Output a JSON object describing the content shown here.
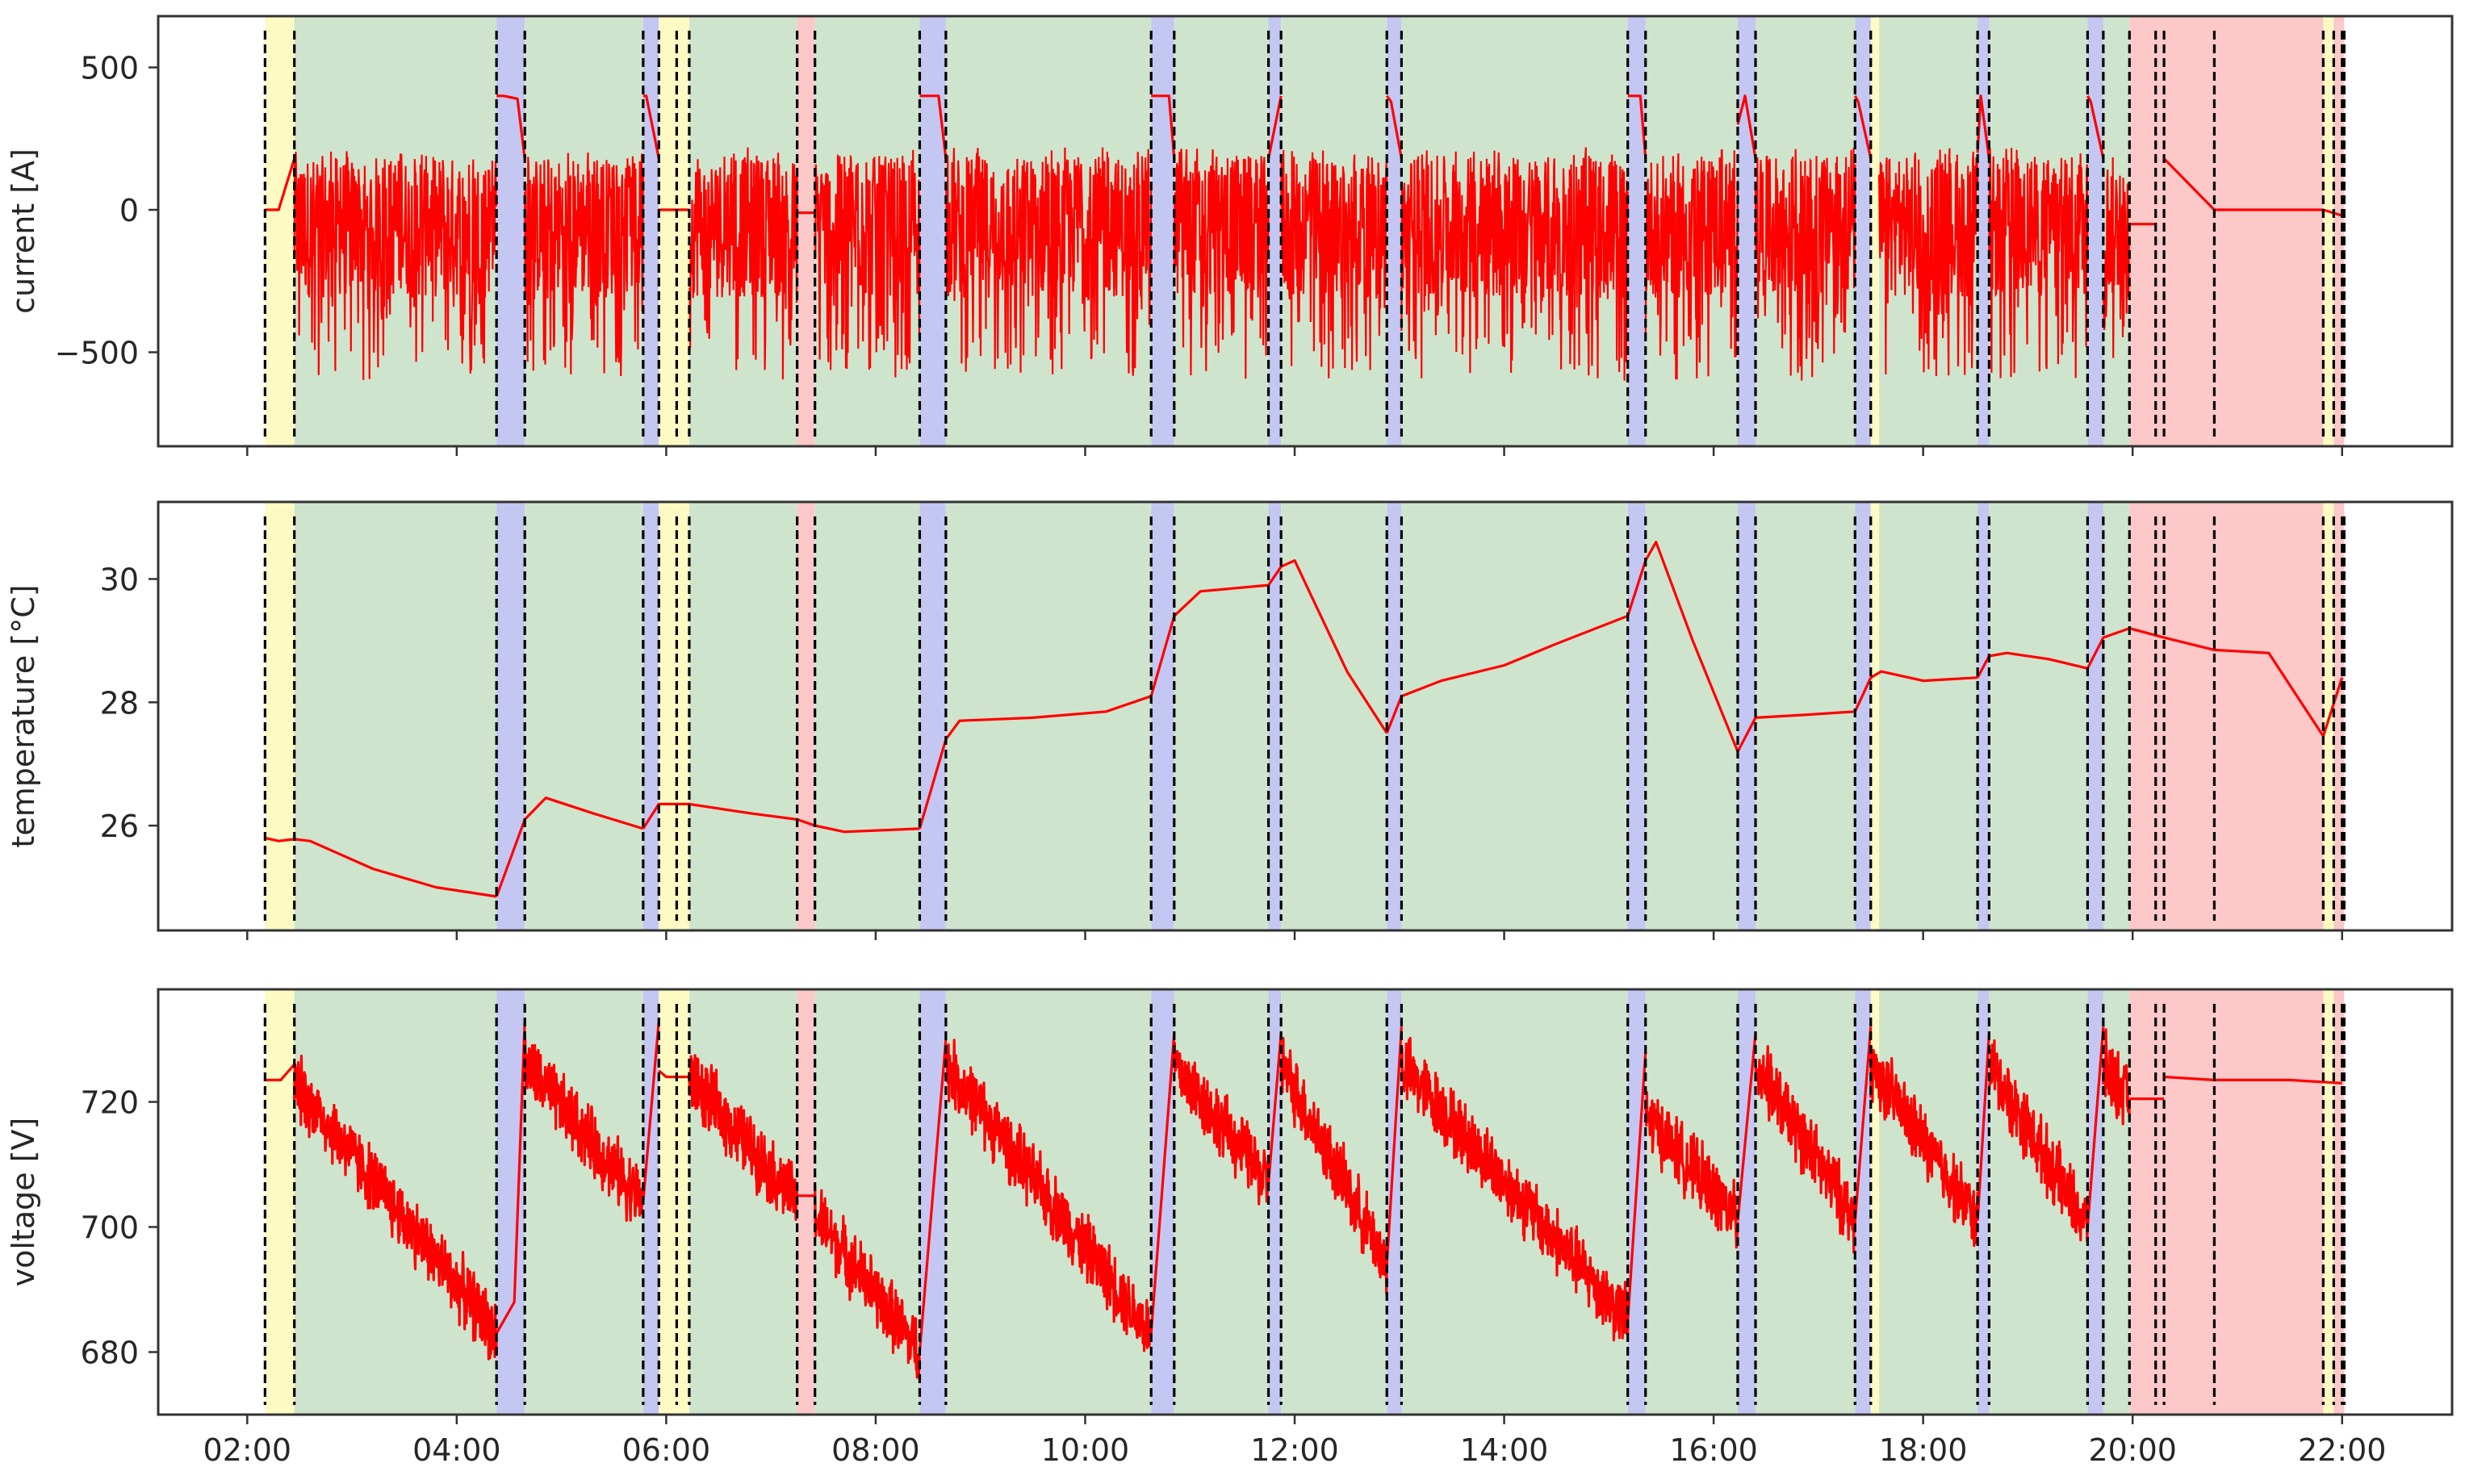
{
  "chart_data": {
    "type": "line",
    "shared_x": {
      "ticks": [
        "02:00",
        "04:00",
        "06:00",
        "08:00",
        "10:00",
        "12:00",
        "14:00",
        "16:00",
        "18:00",
        "20:00",
        "22:00"
      ],
      "tick_hours": [
        2,
        4,
        6,
        8,
        10,
        12,
        14,
        16,
        18,
        20,
        22
      ],
      "xlim_hours": [
        1.15,
        23.05
      ]
    },
    "colors": {
      "line": "#ff0000",
      "boundary": "#000000",
      "driving": "#cfe4cd",
      "charging": "#c4c7f1",
      "idle": "#fdfbc3",
      "stopped": "#fcc8c8"
    },
    "phases": [
      {
        "kind": "idle",
        "start": 2.17,
        "end": 2.45
      },
      {
        "kind": "driving",
        "start": 2.45,
        "end": 4.38
      },
      {
        "kind": "charging",
        "start": 4.38,
        "end": 4.65
      },
      {
        "kind": "driving",
        "start": 4.65,
        "end": 5.78
      },
      {
        "kind": "charging",
        "start": 5.78,
        "end": 5.93
      },
      {
        "kind": "idle",
        "start": 5.93,
        "end": 6.22
      },
      {
        "kind": "driving",
        "start": 6.22,
        "end": 7.25
      },
      {
        "kind": "stopped",
        "start": 7.25,
        "end": 7.42
      },
      {
        "kind": "driving",
        "start": 7.42,
        "end": 8.42
      },
      {
        "kind": "charging",
        "start": 8.42,
        "end": 8.67
      },
      {
        "kind": "driving",
        "start": 8.67,
        "end": 10.63
      },
      {
        "kind": "charging",
        "start": 10.63,
        "end": 10.85
      },
      {
        "kind": "driving",
        "start": 10.85,
        "end": 11.75
      },
      {
        "kind": "charging",
        "start": 11.75,
        "end": 11.87
      },
      {
        "kind": "driving",
        "start": 11.87,
        "end": 12.88
      },
      {
        "kind": "charging",
        "start": 12.88,
        "end": 13.02
      },
      {
        "kind": "driving",
        "start": 13.02,
        "end": 15.18
      },
      {
        "kind": "charging",
        "start": 15.18,
        "end": 15.35
      },
      {
        "kind": "driving",
        "start": 15.35,
        "end": 16.23
      },
      {
        "kind": "charging",
        "start": 16.23,
        "end": 16.4
      },
      {
        "kind": "driving",
        "start": 16.4,
        "end": 17.35
      },
      {
        "kind": "charging",
        "start": 17.35,
        "end": 17.5
      },
      {
        "kind": "idle",
        "start": 17.5,
        "end": 17.58
      },
      {
        "kind": "driving",
        "start": 17.58,
        "end": 18.52
      },
      {
        "kind": "charging",
        "start": 18.52,
        "end": 18.63
      },
      {
        "kind": "driving",
        "start": 18.63,
        "end": 19.57
      },
      {
        "kind": "charging",
        "start": 19.57,
        "end": 19.72
      },
      {
        "kind": "driving",
        "start": 19.72,
        "end": 19.97
      },
      {
        "kind": "stopped",
        "start": 19.97,
        "end": 20.78
      },
      {
        "kind": "stopped",
        "start": 20.78,
        "end": 21.82
      },
      {
        "kind": "idle",
        "start": 21.82,
        "end": 21.92
      },
      {
        "kind": "stopped",
        "start": 21.92,
        "end": 22.02
      }
    ],
    "boundaries": [
      2.17,
      2.45,
      4.38,
      4.65,
      5.78,
      5.93,
      6.1,
      6.22,
      7.25,
      7.42,
      8.42,
      8.67,
      10.63,
      10.85,
      11.75,
      11.87,
      12.88,
      13.02,
      15.18,
      15.35,
      16.23,
      16.4,
      17.35,
      17.5,
      18.52,
      18.63,
      19.57,
      19.72,
      19.97,
      20.22,
      20.3,
      20.78,
      21.82,
      21.92,
      22.0,
      22.02
    ],
    "panels": [
      {
        "id": "current",
        "ylabel": "current [A]",
        "ylim": [
          -830,
          680
        ],
        "yticks": [
          500,
          0,
          -500
        ],
        "ytick_labels": [
          "500",
          "0",
          "−500"
        ],
        "driving_envelope": {
          "high": 200,
          "low": -500
        },
        "series": [
          {
            "x": [
              2.17,
              2.3,
              2.45
            ],
            "y": [
              0,
              0,
              180
            ]
          },
          {
            "x": [
              4.38,
              4.45,
              4.58,
              4.65
            ],
            "y": [
              400,
              400,
              390,
              180
            ]
          },
          {
            "x": [
              5.78,
              5.81,
              5.93
            ],
            "y": [
              400,
              400,
              180
            ]
          },
          {
            "x": [
              5.93,
              6.22
            ],
            "y": [
              0,
              0
            ]
          },
          {
            "x": [
              7.25,
              7.42
            ],
            "y": [
              -10,
              -10
            ]
          },
          {
            "x": [
              8.42,
              8.6,
              8.67
            ],
            "y": [
              400,
              400,
              180
            ]
          },
          {
            "x": [
              10.63,
              10.8,
              10.85
            ],
            "y": [
              400,
              400,
              180
            ]
          },
          {
            "x": [
              11.75,
              11.87
            ],
            "y": [
              180,
              400
            ]
          },
          {
            "x": [
              12.88,
              12.92,
              13.02
            ],
            "y": [
              400,
              380,
              180
            ]
          },
          {
            "x": [
              15.18,
              15.3,
              15.35
            ],
            "y": [
              400,
              400,
              180
            ]
          },
          {
            "x": [
              16.23,
              16.3,
              16.4
            ],
            "y": [
              300,
              400,
              180
            ]
          },
          {
            "x": [
              17.35,
              17.38,
              17.5
            ],
            "y": [
              400,
              380,
              180
            ]
          },
          {
            "x": [
              18.52,
              18.55,
              18.63
            ],
            "y": [
              200,
              400,
              180
            ]
          },
          {
            "x": [
              19.57,
              19.6,
              19.72
            ],
            "y": [
              400,
              380,
              180
            ]
          },
          {
            "x": [
              19.97,
              20.22
            ],
            "y": [
              -50,
              -50
            ]
          },
          {
            "x": [
              20.3,
              20.78,
              21.82,
              22.0
            ],
            "y": [
              180,
              0,
              0,
              -20
            ]
          }
        ]
      },
      {
        "id": "temperature",
        "ylabel": "temperature [°C]",
        "ylim": [
          24.3,
          31.25
        ],
        "yticks": [
          30,
          28,
          26
        ],
        "ytick_labels": [
          "30",
          "28",
          "26"
        ],
        "series": [
          {
            "x": [
              2.17,
              2.3,
              2.45,
              2.6,
              3.2,
              3.8,
              4.38
            ],
            "y": [
              25.8,
              25.75,
              25.78,
              25.75,
              25.3,
              25.0,
              24.85
            ]
          },
          {
            "x": [
              4.38,
              4.65,
              4.85,
              5.3,
              5.78
            ],
            "y": [
              24.85,
              26.1,
              26.45,
              26.2,
              25.95
            ]
          },
          {
            "x": [
              5.78,
              5.93,
              6.22,
              6.8,
              7.25
            ],
            "y": [
              25.95,
              26.35,
              26.35,
              26.2,
              26.1
            ]
          },
          {
            "x": [
              7.25,
              7.42,
              7.7,
              8.42
            ],
            "y": [
              26.1,
              26.0,
              25.9,
              25.95
            ]
          },
          {
            "x": [
              8.42,
              8.67,
              8.8,
              9.5,
              10.2,
              10.63
            ],
            "y": [
              25.95,
              27.4,
              27.7,
              27.75,
              27.85,
              28.1
            ]
          },
          {
            "x": [
              10.63,
              10.85,
              11.1,
              11.75
            ],
            "y": [
              28.1,
              29.4,
              29.8,
              29.9
            ]
          },
          {
            "x": [
              11.75,
              11.87,
              12.0,
              12.5,
              12.88
            ],
            "y": [
              29.9,
              30.2,
              30.3,
              28.5,
              27.5
            ]
          },
          {
            "x": [
              12.88,
              13.02,
              13.4,
              14.0,
              14.5,
              15.18
            ],
            "y": [
              27.5,
              28.1,
              28.35,
              28.6,
              28.95,
              29.4
            ]
          },
          {
            "x": [
              15.18,
              15.35,
              15.45,
              15.8,
              16.23
            ],
            "y": [
              29.4,
              30.3,
              30.6,
              29.0,
              27.2
            ]
          },
          {
            "x": [
              16.23,
              16.4,
              16.9,
              17.35
            ],
            "y": [
              27.2,
              27.75,
              27.8,
              27.85
            ]
          },
          {
            "x": [
              17.35,
              17.5,
              17.6,
              18.0,
              18.52
            ],
            "y": [
              27.85,
              28.4,
              28.5,
              28.35,
              28.4
            ]
          },
          {
            "x": [
              18.52,
              18.63,
              18.8,
              19.2,
              19.57
            ],
            "y": [
              28.4,
              28.75,
              28.8,
              28.7,
              28.55
            ]
          },
          {
            "x": [
              19.57,
              19.72,
              19.97
            ],
            "y": [
              28.55,
              29.05,
              29.2
            ]
          },
          {
            "x": [
              19.97,
              20.3,
              20.78,
              21.3,
              21.82,
              22.0
            ],
            "y": [
              29.2,
              29.05,
              28.85,
              28.8,
              27.45,
              28.4
            ]
          }
        ]
      },
      {
        "id": "voltage",
        "ylabel": "voltage [V]",
        "ylim": [
          670,
          738
        ],
        "yticks": [
          720,
          700,
          680
        ],
        "ytick_labels": [
          "720",
          "700",
          "680"
        ],
        "drive_amplitude": 4,
        "series": [
          {
            "x": [
              2.17,
              2.32,
              2.45
            ],
            "y": [
              723.5,
              723.5,
              726
            ]
          },
          {
            "x": [
              2.45,
              4.38
            ],
            "y": [
              723,
              683
            ]
          },
          {
            "x": [
              4.38,
              4.55,
              4.65
            ],
            "y": [
              683,
              688,
              733
            ]
          },
          {
            "x": [
              4.65,
              5.78
            ],
            "y": [
              726,
              704
            ]
          },
          {
            "x": [
              5.78,
              5.93
            ],
            "y": [
              704,
              733
            ]
          },
          {
            "x": [
              5.93,
              6.0,
              6.22
            ],
            "y": [
              725,
              724,
              724
            ]
          },
          {
            "x": [
              6.22,
              7.25
            ],
            "y": [
              724,
              704
            ]
          },
          {
            "x": [
              7.25,
              7.42
            ],
            "y": [
              705,
              705
            ]
          },
          {
            "x": [
              7.42,
              8.42
            ],
            "y": [
              702,
              680
            ]
          },
          {
            "x": [
              8.42,
              8.67
            ],
            "y": [
              680,
              730
            ]
          },
          {
            "x": [
              8.67,
              10.63
            ],
            "y": [
              726,
              683
            ]
          },
          {
            "x": [
              10.63,
              10.85
            ],
            "y": [
              683,
              731
            ]
          },
          {
            "x": [
              10.85,
              11.75
            ],
            "y": [
              726,
              707
            ]
          },
          {
            "x": [
              11.75,
              11.87
            ],
            "y": [
              707,
              731
            ]
          },
          {
            "x": [
              11.87,
              12.88
            ],
            "y": [
              726,
              694
            ]
          },
          {
            "x": [
              12.88,
              13.02
            ],
            "y": [
              694,
              732
            ]
          },
          {
            "x": [
              13.02,
              15.18
            ],
            "y": [
              726,
              685
            ]
          },
          {
            "x": [
              15.18,
              15.35
            ],
            "y": [
              685,
              728
            ]
          },
          {
            "x": [
              15.35,
              16.23
            ],
            "y": [
              718,
              701
            ]
          },
          {
            "x": [
              16.23,
              16.4
            ],
            "y": [
              701,
              731
            ]
          },
          {
            "x": [
              16.4,
              17.35
            ],
            "y": [
              726,
              701
            ]
          },
          {
            "x": [
              17.35,
              17.5
            ],
            "y": [
              701,
              732
            ]
          },
          {
            "x": [
              17.5,
              18.52
            ],
            "y": [
              726,
              701
            ]
          },
          {
            "x": [
              18.52,
              18.63
            ],
            "y": [
              701,
              731
            ]
          },
          {
            "x": [
              18.63,
              19.57
            ],
            "y": [
              726,
              700
            ]
          },
          {
            "x": [
              19.57,
              19.72
            ],
            "y": [
              700,
              732
            ]
          },
          {
            "x": [
              19.72,
              19.97
            ],
            "y": [
              726,
              720
            ]
          },
          {
            "x": [
              19.97,
              20.3
            ],
            "y": [
              720.5,
              720.5
            ]
          },
          {
            "x": [
              20.3,
              20.78,
              21.5,
              22.0
            ],
            "y": [
              724,
              723.5,
              723.5,
              723
            ]
          }
        ]
      }
    ]
  }
}
